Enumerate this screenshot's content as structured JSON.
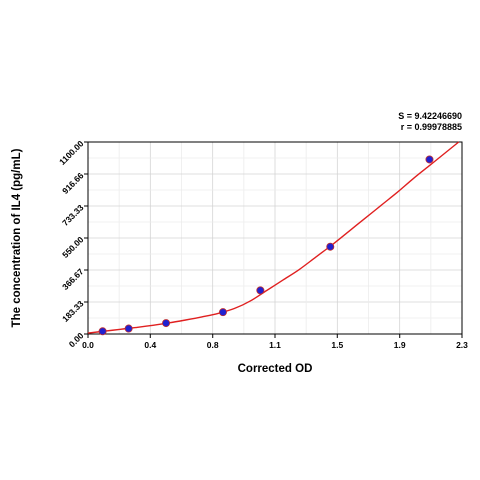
{
  "stats": {
    "s_label": "S = 9.42246690",
    "r_label": "r = 0.99978885"
  },
  "chart_data": {
    "type": "scatter",
    "title": "",
    "xlabel": "Corrected OD",
    "ylabel": "The concentration of IL4 (pg/mL)",
    "xlim": [
      0.0,
      2.3
    ],
    "ylim": [
      0.0,
      1100.0
    ],
    "x_ticks": [
      "0.0",
      "0.4",
      "0.8",
      "1.1",
      "1.5",
      "1.9",
      "2.3"
    ],
    "x_tick_values": [
      0.0,
      0.383,
      0.767,
      1.15,
      1.533,
      1.917,
      2.3
    ],
    "y_ticks": [
      "0.00",
      "183.33",
      "366.67",
      "550.00",
      "733.33",
      "916.66",
      "1100.00"
    ],
    "y_tick_values": [
      0.0,
      183.33,
      366.67,
      550.0,
      733.33,
      916.66,
      1100.0
    ],
    "grid": true,
    "series": [
      {
        "kind": "points",
        "color": "#2020d0",
        "points": [
          {
            "x": 0.09,
            "y": 15.6
          },
          {
            "x": 0.25,
            "y": 31.2
          },
          {
            "x": 0.48,
            "y": 62.5
          },
          {
            "x": 0.83,
            "y": 125
          },
          {
            "x": 1.06,
            "y": 250
          },
          {
            "x": 1.49,
            "y": 500
          },
          {
            "x": 2.1,
            "y": 1000
          }
        ]
      },
      {
        "kind": "fit-curve",
        "color": "#e02020",
        "points": [
          {
            "x": 0.0,
            "y": 5
          },
          {
            "x": 0.1,
            "y": 16
          },
          {
            "x": 0.2,
            "y": 27
          },
          {
            "x": 0.3,
            "y": 38
          },
          {
            "x": 0.4,
            "y": 50
          },
          {
            "x": 0.5,
            "y": 64
          },
          {
            "x": 0.6,
            "y": 80
          },
          {
            "x": 0.7,
            "y": 98
          },
          {
            "x": 0.8,
            "y": 118
          },
          {
            "x": 0.9,
            "y": 146
          },
          {
            "x": 1.0,
            "y": 190
          },
          {
            "x": 1.1,
            "y": 250
          },
          {
            "x": 1.2,
            "y": 310
          },
          {
            "x": 1.3,
            "y": 370
          },
          {
            "x": 1.4,
            "y": 440
          },
          {
            "x": 1.5,
            "y": 510
          },
          {
            "x": 1.6,
            "y": 585
          },
          {
            "x": 1.7,
            "y": 660
          },
          {
            "x": 1.8,
            "y": 735
          },
          {
            "x": 1.9,
            "y": 810
          },
          {
            "x": 2.0,
            "y": 890
          },
          {
            "x": 2.1,
            "y": 965
          },
          {
            "x": 2.2,
            "y": 1040
          },
          {
            "x": 2.28,
            "y": 1100
          }
        ]
      }
    ]
  }
}
